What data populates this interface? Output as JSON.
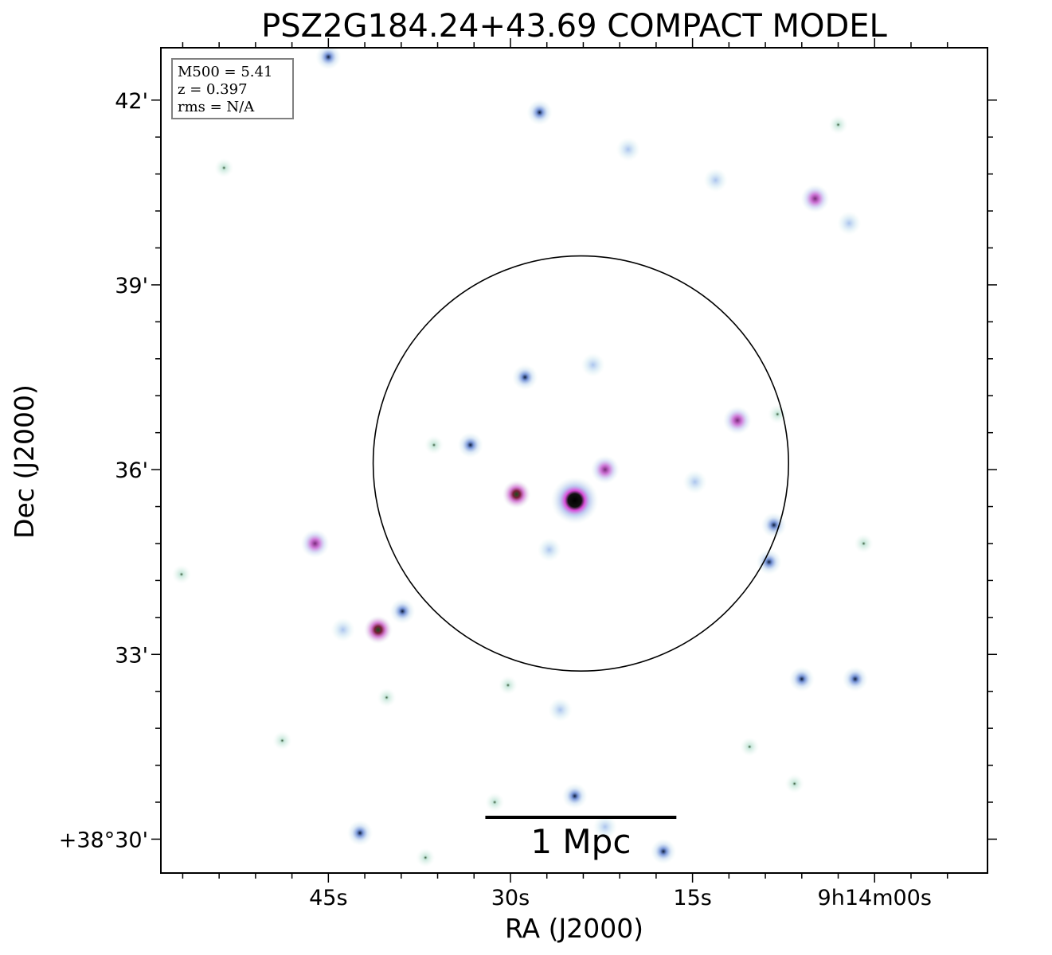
{
  "chart_data": {
    "type": "scatter",
    "title": "PSZ2G184.24+43.69 COMPACT MODEL",
    "xlabel": "RA (J2000)",
    "ylabel": "Dec (J2000)",
    "x_ticks": [
      {
        "label": "45s",
        "ra_s": 45
      },
      {
        "label": "30s",
        "ra_s": 30
      },
      {
        "label": "15s",
        "ra_s": 15
      },
      {
        "label": "9h14m00s",
        "ra_s": 0
      }
    ],
    "y_ticks": [
      {
        "label": "42'",
        "dec_arcmin": 42
      },
      {
        "label": "39'",
        "dec_arcmin": 39
      },
      {
        "label": "36'",
        "dec_arcmin": 36
      },
      {
        "label": "33'",
        "dec_arcmin": 33
      },
      {
        "label": "+38°30'",
        "dec_arcmin": 30
      }
    ],
    "xlim": [
      58.8,
      -9.3
    ],
    "ylim": [
      29.45,
      42.85
    ],
    "info_box": [
      "M500 = 5.41",
      "z = 0.397",
      "rms = N/A"
    ],
    "scale_bar": {
      "label": "1 Mpc",
      "length_arcmin": 3.1
    },
    "aperture_circle": {
      "center_ra_s": 24.2,
      "center_dec_arcmin": 36.1,
      "radius_arcmin": 3.37
    },
    "sources": [
      {
        "ra_s": 27.6,
        "dec_arcmin": 41.8,
        "kind": "blue"
      },
      {
        "ra_s": 45.0,
        "dec_arcmin": 42.7,
        "kind": "blue"
      },
      {
        "ra_s": 4.9,
        "dec_arcmin": 40.4,
        "kind": "magenta"
      },
      {
        "ra_s": 11.3,
        "dec_arcmin": 36.8,
        "kind": "magenta"
      },
      {
        "ra_s": 28.8,
        "dec_arcmin": 37.5,
        "kind": "blue"
      },
      {
        "ra_s": 24.7,
        "dec_arcmin": 35.5,
        "kind": "core"
      },
      {
        "ra_s": 29.5,
        "dec_arcmin": 35.6,
        "kind": "red"
      },
      {
        "ra_s": 22.2,
        "dec_arcmin": 36.0,
        "kind": "magenta"
      },
      {
        "ra_s": 46.1,
        "dec_arcmin": 34.8,
        "kind": "magenta"
      },
      {
        "ra_s": 40.9,
        "dec_arcmin": 33.4,
        "kind": "red"
      },
      {
        "ra_s": 33.3,
        "dec_arcmin": 36.4,
        "kind": "blue"
      },
      {
        "ra_s": 26.8,
        "dec_arcmin": 34.7,
        "kind": "cyan"
      },
      {
        "ra_s": 8.7,
        "dec_arcmin": 34.5,
        "kind": "blue"
      },
      {
        "ra_s": 1.6,
        "dec_arcmin": 32.6,
        "kind": "blue"
      },
      {
        "ra_s": 24.7,
        "dec_arcmin": 30.7,
        "kind": "blue"
      },
      {
        "ra_s": 42.4,
        "dec_arcmin": 30.1,
        "kind": "blue"
      },
      {
        "ra_s": 38.9,
        "dec_arcmin": 33.7,
        "kind": "blue"
      },
      {
        "ra_s": 20.3,
        "dec_arcmin": 41.2,
        "kind": "cyan"
      },
      {
        "ra_s": 13.1,
        "dec_arcmin": 40.7,
        "kind": "cyan"
      },
      {
        "ra_s": 23.2,
        "dec_arcmin": 37.7,
        "kind": "cyan"
      },
      {
        "ra_s": 36.3,
        "dec_arcmin": 36.4,
        "kind": "green"
      },
      {
        "ra_s": 25.9,
        "dec_arcmin": 32.1,
        "kind": "cyan"
      },
      {
        "ra_s": 30.2,
        "dec_arcmin": 32.5,
        "kind": "green"
      },
      {
        "ra_s": 3.0,
        "dec_arcmin": 41.6,
        "kind": "green"
      },
      {
        "ra_s": 2.1,
        "dec_arcmin": 40.0,
        "kind": "cyan"
      },
      {
        "ra_s": 53.6,
        "dec_arcmin": 40.9,
        "kind": "green"
      },
      {
        "ra_s": 43.8,
        "dec_arcmin": 33.4,
        "kind": "cyan"
      },
      {
        "ra_s": 8.3,
        "dec_arcmin": 35.1,
        "kind": "blue"
      },
      {
        "ra_s": 10.3,
        "dec_arcmin": 31.5,
        "kind": "green"
      },
      {
        "ra_s": 6.0,
        "dec_arcmin": 32.6,
        "kind": "blue"
      },
      {
        "ra_s": 17.4,
        "dec_arcmin": 29.8,
        "kind": "blue"
      },
      {
        "ra_s": 37.0,
        "dec_arcmin": 29.7,
        "kind": "green"
      },
      {
        "ra_s": 48.8,
        "dec_arcmin": 31.6,
        "kind": "green"
      },
      {
        "ra_s": 31.3,
        "dec_arcmin": 30.6,
        "kind": "green"
      },
      {
        "ra_s": 57.1,
        "dec_arcmin": 34.3,
        "kind": "green"
      },
      {
        "ra_s": 6.6,
        "dec_arcmin": 30.9,
        "kind": "green"
      },
      {
        "ra_s": 22.2,
        "dec_arcmin": 30.2,
        "kind": "cyan"
      },
      {
        "ra_s": 0.9,
        "dec_arcmin": 34.8,
        "kind": "green"
      },
      {
        "ra_s": 40.2,
        "dec_arcmin": 32.3,
        "kind": "green"
      },
      {
        "ra_s": 14.8,
        "dec_arcmin": 35.8,
        "kind": "cyan"
      },
      {
        "ra_s": 8.0,
        "dec_arcmin": 36.9,
        "kind": "green"
      }
    ]
  }
}
